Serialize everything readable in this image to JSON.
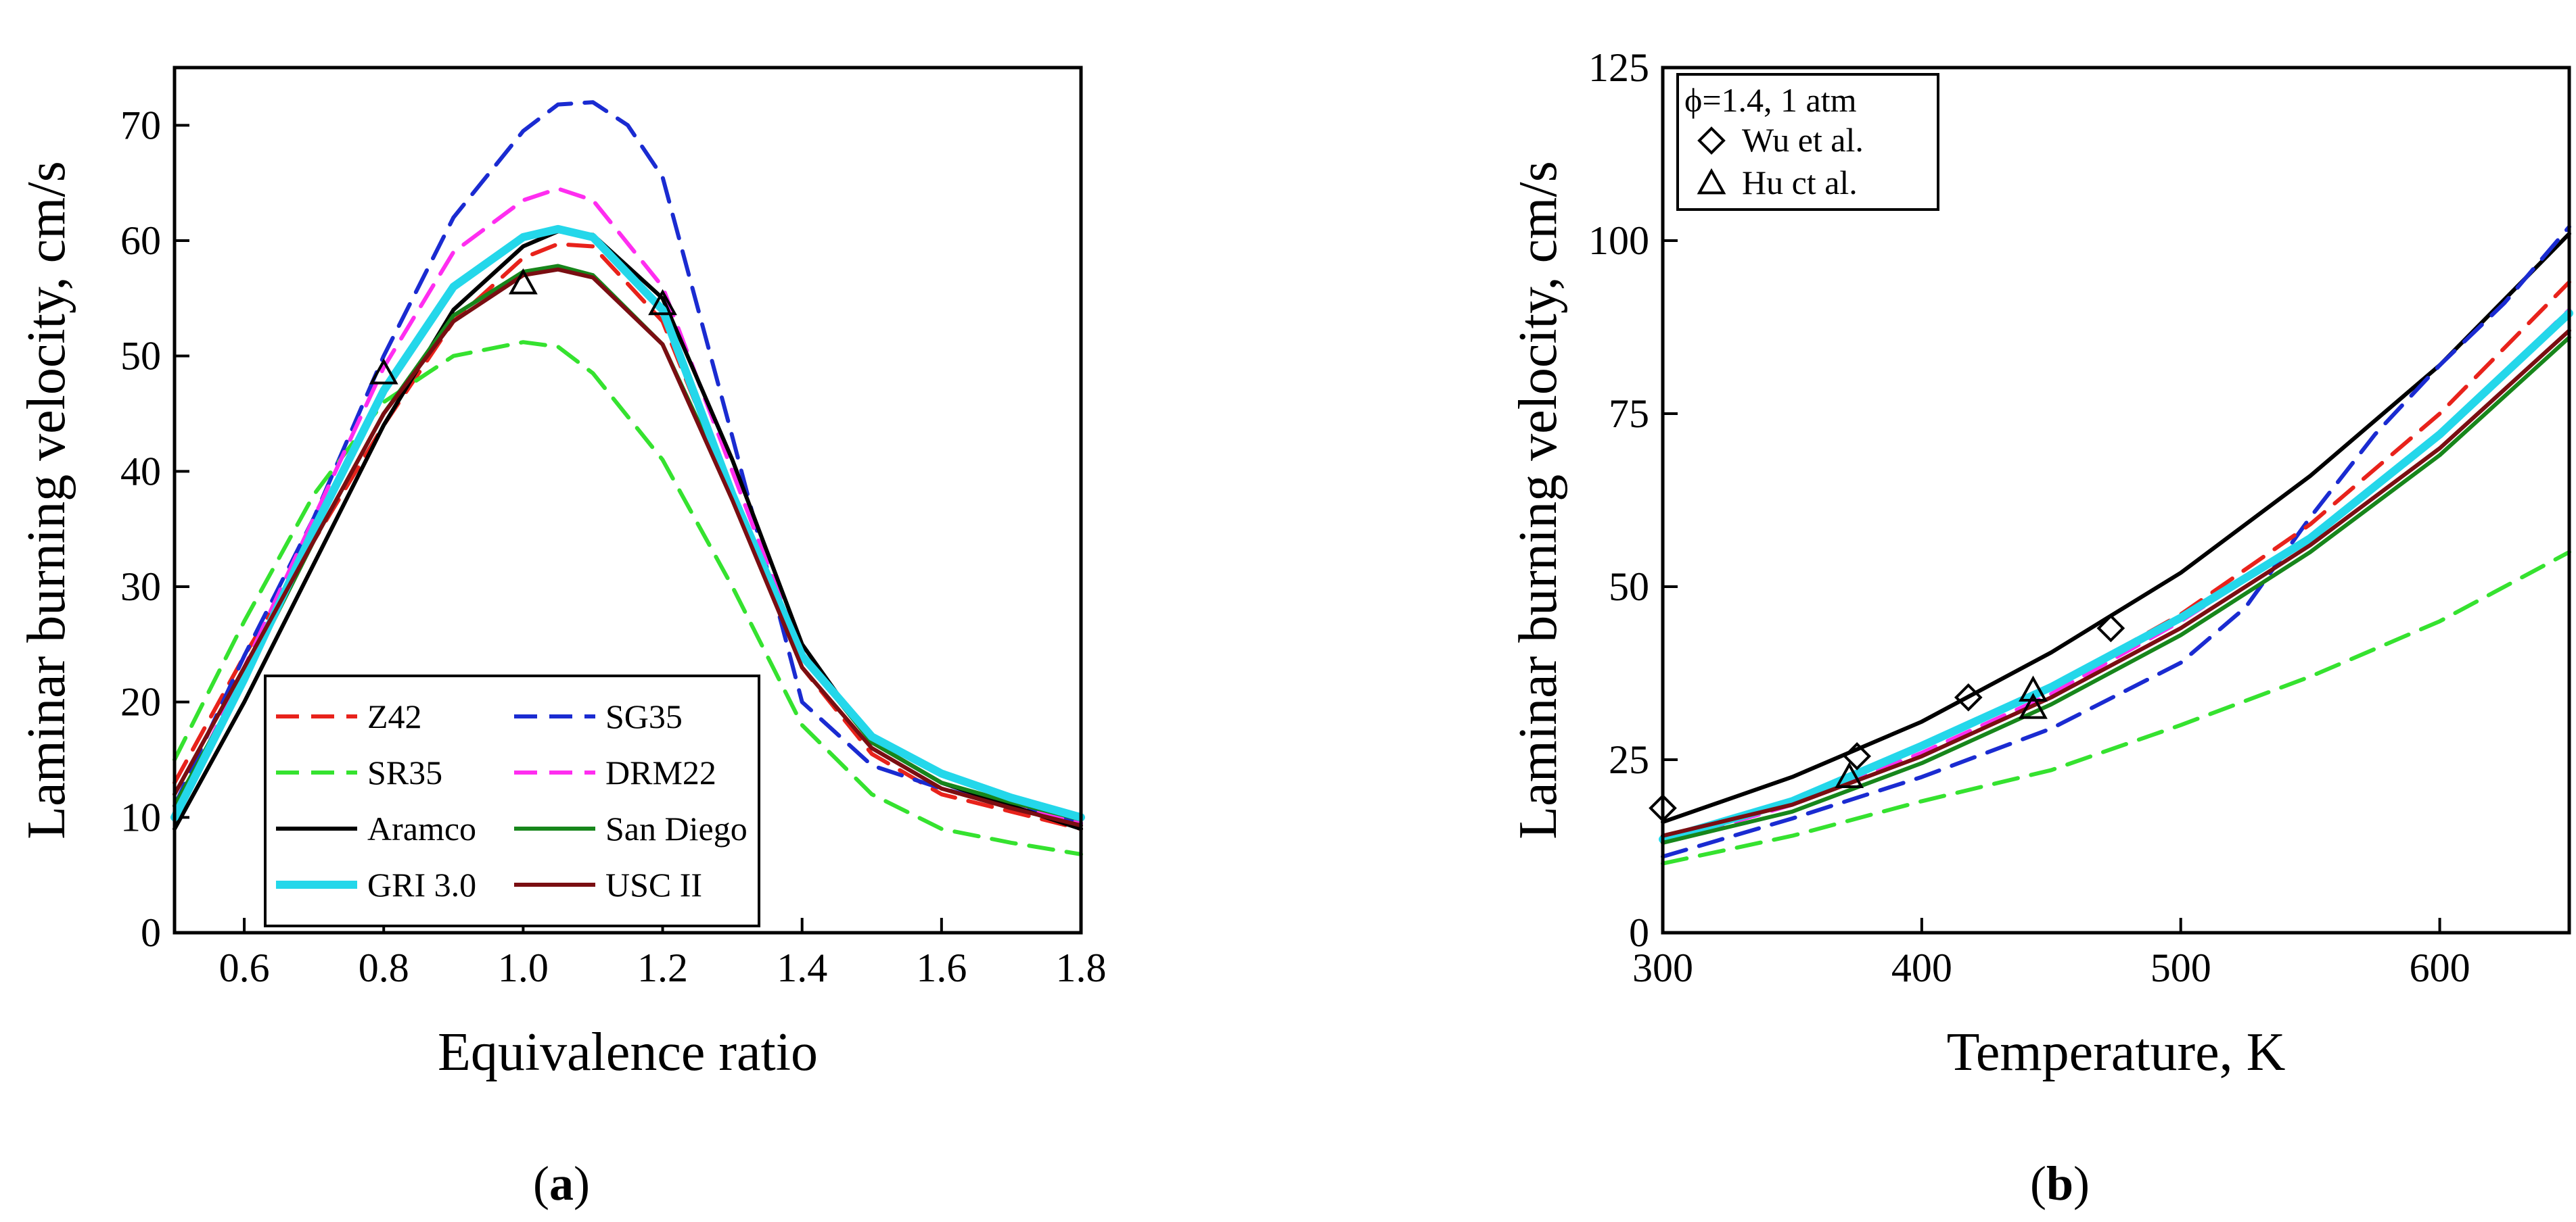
{
  "colors": {
    "Z42": "#e8221b",
    "SG35": "#1a2bd1",
    "SR35": "#35e22f",
    "DRM22": "#ff2df0",
    "Aramco": "#000000",
    "San Diego": "#17861b",
    "GRI 3.0": "#24d7ea",
    "USC II": "#7a0e12"
  },
  "chart_data": [
    {
      "id": "a",
      "type": "line",
      "caption": "(a)",
      "caption_parts": [
        "(",
        "a",
        ")"
      ],
      "xlabel": "Equivalence ratio",
      "ylabel": "Laminar burning velocity, cm/s",
      "xlim": [
        0.5,
        1.8
      ],
      "ylim": [
        0,
        75
      ],
      "xticks": [
        0.6,
        0.8,
        1.0,
        1.2,
        1.4,
        1.6,
        1.8
      ],
      "xtick_labels": [
        "0.6",
        "0.8",
        "1.0",
        "1.2",
        "1.4",
        "1.6",
        "1.8"
      ],
      "yticks": [
        0,
        10,
        20,
        30,
        40,
        50,
        60,
        70
      ],
      "ytick_labels": [
        "0",
        "10",
        "20",
        "30",
        "40",
        "50",
        "60",
        "70"
      ],
      "legend_position": "bottom-left",
      "series": [
        {
          "name": "Z42",
          "style": "dashed",
          "x": [
            0.5,
            0.6,
            0.7,
            0.8,
            0.9,
            1.0,
            1.05,
            1.1,
            1.2,
            1.3,
            1.4,
            1.5,
            1.6,
            1.7,
            1.8
          ],
          "y": [
            13,
            24,
            34,
            44,
            53,
            58.5,
            59.7,
            59.5,
            53,
            38,
            23,
            15.5,
            12,
            10.5,
            9
          ]
        },
        {
          "name": "SG35",
          "style": "dashed",
          "x": [
            0.5,
            0.6,
            0.7,
            0.8,
            0.9,
            1.0,
            1.05,
            1.1,
            1.15,
            1.2,
            1.3,
            1.4,
            1.5,
            1.6,
            1.7,
            1.8
          ],
          "y": [
            11,
            24,
            36,
            50,
            62,
            69.5,
            71.8,
            72,
            70,
            65.5,
            43,
            20,
            14.5,
            12.5,
            11,
            9.5
          ]
        },
        {
          "name": "SR35",
          "style": "dashed",
          "x": [
            0.5,
            0.6,
            0.7,
            0.8,
            0.9,
            1.0,
            1.05,
            1.1,
            1.2,
            1.3,
            1.4,
            1.5,
            1.6,
            1.7,
            1.8
          ],
          "y": [
            15,
            27,
            38,
            46,
            50,
            51.2,
            50.8,
            48.5,
            41,
            30,
            18,
            12,
            9,
            7.8,
            6.8
          ]
        },
        {
          "name": "DRM22",
          "style": "dashed",
          "x": [
            0.5,
            0.6,
            0.7,
            0.8,
            0.9,
            1.0,
            1.05,
            1.1,
            1.2,
            1.3,
            1.4,
            1.5,
            1.6,
            1.7,
            1.8
          ],
          "y": [
            10,
            23,
            36,
            49,
            59,
            63.5,
            64.5,
            63.5,
            56,
            40,
            24,
            16.5,
            13,
            11,
            9.5
          ]
        },
        {
          "name": "Aramco",
          "style": "solid",
          "x": [
            0.5,
            0.6,
            0.7,
            0.8,
            0.9,
            1.0,
            1.05,
            1.1,
            1.2,
            1.3,
            1.4,
            1.5,
            1.6,
            1.7,
            1.8
          ],
          "y": [
            9,
            20,
            32,
            44,
            54,
            59.5,
            60.8,
            60.5,
            55,
            41,
            25,
            16.5,
            13,
            11,
            9
          ]
        },
        {
          "name": "San Diego",
          "style": "solid",
          "x": [
            0.5,
            0.6,
            0.7,
            0.8,
            0.9,
            1.0,
            1.05,
            1.1,
            1.2,
            1.3,
            1.4,
            1.5,
            1.6,
            1.7,
            1.8
          ],
          "y": [
            11,
            22,
            34,
            45,
            53.5,
            57.3,
            57.8,
            57,
            51,
            38,
            24,
            16.5,
            13,
            11.3,
            9.8
          ]
        },
        {
          "name": "GRI 3.0",
          "style": "solid",
          "x": [
            0.5,
            0.6,
            0.7,
            0.8,
            0.9,
            1.0,
            1.05,
            1.1,
            1.2,
            1.3,
            1.4,
            1.5,
            1.6,
            1.7,
            1.8
          ],
          "y": [
            10,
            22,
            35,
            47,
            56,
            60.3,
            61,
            60.3,
            54,
            38,
            24,
            17,
            13.8,
            11.7,
            10
          ]
        },
        {
          "name": "USC II",
          "style": "solid",
          "x": [
            0.5,
            0.6,
            0.7,
            0.8,
            0.9,
            1.0,
            1.05,
            1.1,
            1.2,
            1.3,
            1.4,
            1.5,
            1.6,
            1.7,
            1.8
          ],
          "y": [
            12,
            23,
            34,
            45,
            53,
            57,
            57.5,
            56.8,
            51,
            37.5,
            23,
            16,
            12.5,
            10.8,
            9.3
          ]
        }
      ],
      "markers": [
        {
          "name": "Hu et al.",
          "shape": "triangle",
          "x": [
            0.8,
            1.0,
            1.2
          ],
          "y": [
            48.5,
            56.3,
            54.5
          ]
        }
      ],
      "legend": {
        "columns": [
          [
            "Z42",
            "SR35",
            "Aramco",
            "GRI 3.0"
          ],
          [
            "SG35",
            "DRM22",
            "San Diego",
            "USC II"
          ]
        ]
      }
    },
    {
      "id": "b",
      "type": "line",
      "caption": "(b)",
      "caption_parts": [
        "(",
        "b",
        ")"
      ],
      "xlabel": "Temperature, K",
      "ylabel": "Laminar burning velocity, cm/s",
      "xlim": [
        300,
        650
      ],
      "ylim": [
        0,
        125
      ],
      "xticks": [
        300,
        400,
        500,
        600
      ],
      "xtick_labels": [
        "300",
        "400",
        "500",
        "600"
      ],
      "yticks": [
        0,
        25,
        50,
        75,
        100,
        125
      ],
      "ytick_labels": [
        "0",
        "25",
        "50",
        "75",
        "100",
        "125"
      ],
      "legend_position": "top-left",
      "legend_title": "ϕ=1.4, 1 atm",
      "series": [
        {
          "name": "Aramco",
          "style": "solid",
          "x": [
            300,
            350,
            400,
            450,
            500,
            550,
            600,
            650
          ],
          "y": [
            16,
            22.5,
            30.5,
            40.5,
            52,
            66,
            82,
            101
          ]
        },
        {
          "name": "SG35",
          "style": "dashed",
          "x": [
            300,
            350,
            400,
            450,
            500,
            525,
            550,
            575,
            600,
            625,
            650
          ],
          "y": [
            11,
            16.5,
            22.5,
            29.5,
            39,
            47,
            60,
            72,
            82,
            91,
            102
          ]
        },
        {
          "name": "Z42",
          "style": "dashed",
          "x": [
            300,
            350,
            400,
            450,
            500,
            550,
            600,
            650
          ],
          "y": [
            13,
            19,
            27,
            35.5,
            46,
            59,
            75,
            94
          ]
        },
        {
          "name": "DRM22",
          "style": "dashed",
          "x": [
            300,
            350,
            400,
            450,
            500,
            550,
            600,
            650
          ],
          "y": [
            13,
            18.5,
            26,
            34.5,
            45,
            57,
            72,
            90
          ]
        },
        {
          "name": "GRI 3.0",
          "style": "solid",
          "x": [
            300,
            350,
            400,
            450,
            500,
            550,
            600,
            650
          ],
          "y": [
            13.5,
            19,
            27,
            35.5,
            45.5,
            57,
            72,
            89.5
          ]
        },
        {
          "name": "USC II",
          "style": "solid",
          "x": [
            300,
            350,
            400,
            450,
            500,
            550,
            600,
            650
          ],
          "y": [
            14,
            18.5,
            25.5,
            34,
            44,
            56,
            70,
            87
          ]
        },
        {
          "name": "San Diego",
          "style": "solid",
          "x": [
            300,
            350,
            400,
            450,
            500,
            550,
            600,
            650
          ],
          "y": [
            13,
            17.5,
            24.5,
            33,
            43,
            55,
            69,
            86
          ]
        },
        {
          "name": "SR35",
          "style": "dashed",
          "x": [
            300,
            350,
            400,
            450,
            500,
            550,
            600,
            650
          ],
          "y": [
            10,
            14,
            19,
            23.5,
            30,
            37,
            45,
            55
          ]
        }
      ],
      "markers": [
        {
          "name": "Wu et al.",
          "shape": "diamond",
          "x": [
            300,
            375,
            418,
            473
          ],
          "y": [
            18,
            25.5,
            34,
            44
          ]
        },
        {
          "name": "Hu ct al.",
          "shape": "triangle",
          "x": [
            372,
            443,
            443
          ],
          "y": [
            22.5,
            32.5,
            35
          ]
        }
      ]
    }
  ]
}
